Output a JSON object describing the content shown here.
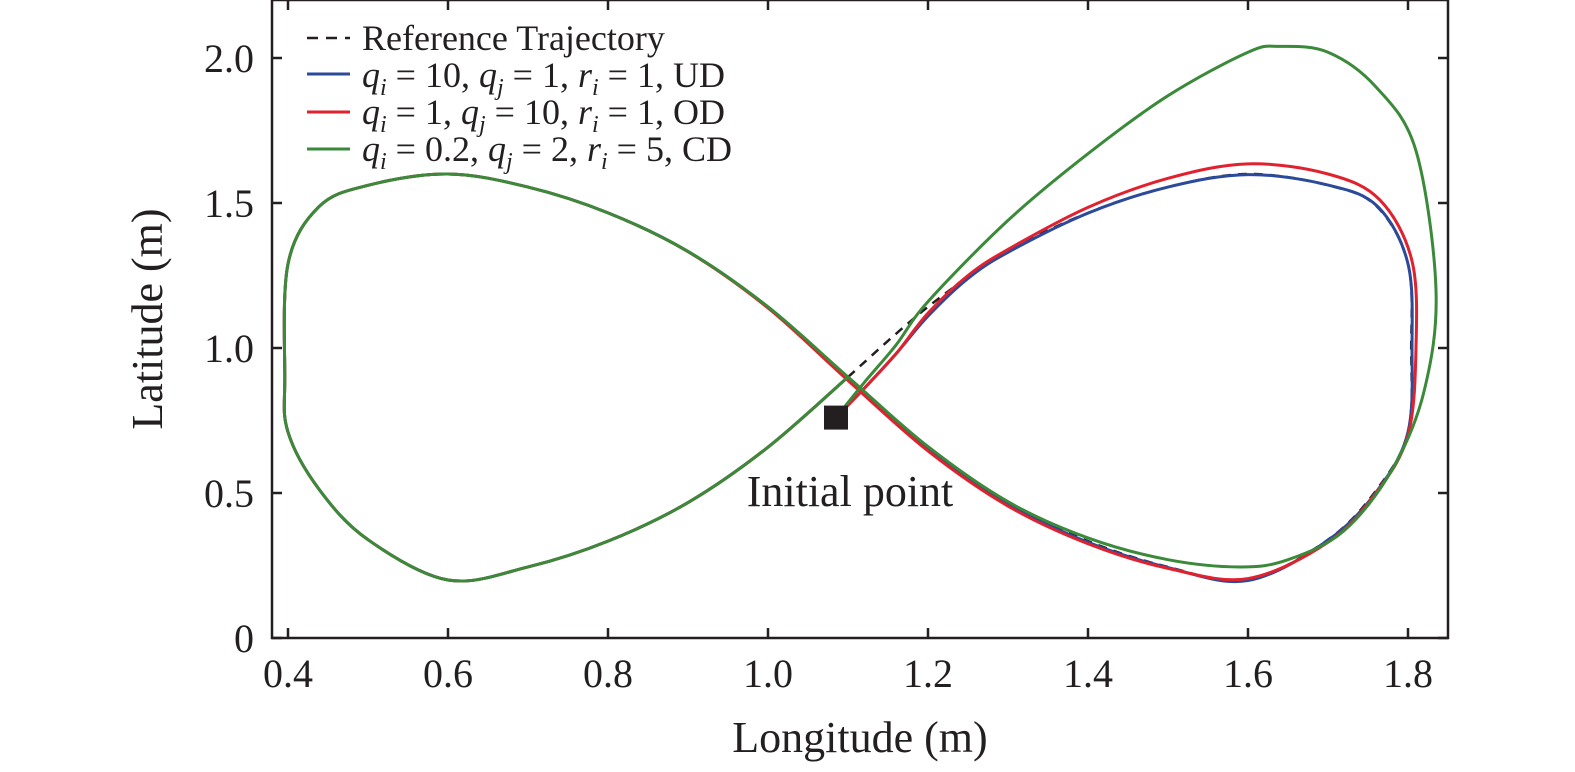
{
  "chart_data": {
    "type": "line",
    "title": "",
    "xlabel": "Longitude (m)",
    "ylabel": "Latitude (m)",
    "xlim": [
      0.38,
      1.85
    ],
    "ylim": [
      0,
      2.2
    ],
    "xticks": [
      0.4,
      0.6,
      0.8,
      1.0,
      1.2,
      1.4,
      1.6,
      1.8
    ],
    "xtick_labels": [
      "0.4",
      "0.6",
      "0.8",
      "1.0",
      "1.2",
      "1.4",
      "1.6",
      "1.8"
    ],
    "yticks": [
      0,
      0.5,
      1.0,
      1.5,
      2.0
    ],
    "ytick_labels": [
      "0",
      "0.5",
      "1.0",
      "1.5",
      "2.0"
    ],
    "grid": false,
    "legend_position": "top-left",
    "colors": {
      "reference": "#231f20",
      "ud": "#2b4a9b",
      "od": "#e0222e",
      "cd": "#3a8a3a",
      "axis": "#231f20"
    },
    "reference_points": [
      [
        1.1,
        0.9
      ],
      [
        1.2,
        1.142
      ],
      [
        1.3,
        1.333
      ],
      [
        1.4,
        1.466
      ],
      [
        1.5,
        1.555
      ],
      [
        1.6,
        1.6
      ],
      [
        1.7,
        1.561
      ],
      [
        1.761,
        1.488
      ],
      [
        1.8,
        1.29
      ],
      [
        1.804,
        1.0
      ],
      [
        1.8,
        0.71
      ],
      [
        1.761,
        0.512
      ],
      [
        1.7,
        0.339
      ],
      [
        1.6,
        0.2
      ],
      [
        1.5,
        0.245
      ],
      [
        1.4,
        0.334
      ],
      [
        1.3,
        0.467
      ],
      [
        1.2,
        0.658
      ],
      [
        1.1,
        0.9
      ],
      [
        1.0,
        1.142
      ],
      [
        0.9,
        1.333
      ],
      [
        0.8,
        1.466
      ],
      [
        0.7,
        1.555
      ],
      [
        0.6,
        1.6
      ],
      [
        0.5,
        1.561
      ],
      [
        0.439,
        1.488
      ],
      [
        0.4,
        1.29
      ],
      [
        0.396,
        0.9
      ],
      [
        0.4,
        0.71
      ],
      [
        0.439,
        0.512
      ],
      [
        0.5,
        0.339
      ],
      [
        0.6,
        0.2
      ],
      [
        0.7,
        0.245
      ],
      [
        0.8,
        0.334
      ],
      [
        0.9,
        0.467
      ],
      [
        1.0,
        0.658
      ],
      [
        1.1,
        0.9
      ]
    ],
    "series": [
      {
        "key": "ud",
        "color": "#2b4a9b",
        "legend_parts": {
          "q_i": "10",
          "q_j": "1",
          "r_i": "1",
          "tag": "UD"
        },
        "points": [
          [
            1.085,
            0.76
          ],
          [
            1.12,
            0.86
          ],
          [
            1.16,
            0.98
          ],
          [
            1.2,
            1.11
          ],
          [
            1.25,
            1.24
          ],
          [
            1.3,
            1.33
          ],
          [
            1.4,
            1.465
          ],
          [
            1.5,
            1.555
          ],
          [
            1.6,
            1.598
          ],
          [
            1.7,
            1.562
          ],
          [
            1.762,
            1.488
          ],
          [
            1.8,
            1.29
          ],
          [
            1.805,
            1.0
          ],
          [
            1.8,
            0.71
          ],
          [
            1.762,
            0.51
          ],
          [
            1.7,
            0.337
          ],
          [
            1.6,
            0.198
          ],
          [
            1.5,
            0.243
          ],
          [
            1.4,
            0.33
          ],
          [
            1.3,
            0.463
          ],
          [
            1.2,
            0.655
          ],
          [
            1.1,
            0.895
          ],
          [
            1.0,
            1.14
          ],
          [
            0.9,
            1.333
          ],
          [
            0.8,
            1.466
          ],
          [
            0.7,
            1.555
          ],
          [
            0.6,
            1.6
          ],
          [
            0.5,
            1.561
          ],
          [
            0.439,
            1.488
          ],
          [
            0.4,
            1.29
          ],
          [
            0.396,
            0.9
          ],
          [
            0.4,
            0.71
          ],
          [
            0.439,
            0.512
          ],
          [
            0.5,
            0.339
          ],
          [
            0.6,
            0.2
          ],
          [
            0.7,
            0.245
          ],
          [
            0.8,
            0.334
          ],
          [
            0.9,
            0.467
          ],
          [
            1.0,
            0.658
          ],
          [
            1.1,
            0.9
          ]
        ]
      },
      {
        "key": "od",
        "color": "#e0222e",
        "legend_parts": {
          "q_i": "1",
          "q_j": "10",
          "r_i": "1",
          "tag": "OD"
        },
        "points": [
          [
            1.085,
            0.76
          ],
          [
            1.12,
            0.86
          ],
          [
            1.16,
            0.98
          ],
          [
            1.2,
            1.12
          ],
          [
            1.25,
            1.25
          ],
          [
            1.3,
            1.34
          ],
          [
            1.4,
            1.485
          ],
          [
            1.5,
            1.585
          ],
          [
            1.6,
            1.635
          ],
          [
            1.7,
            1.6
          ],
          [
            1.765,
            1.51
          ],
          [
            1.805,
            1.3
          ],
          [
            1.81,
            1.0
          ],
          [
            1.8,
            0.7
          ],
          [
            1.76,
            0.5
          ],
          [
            1.7,
            0.33
          ],
          [
            1.6,
            0.205
          ],
          [
            1.5,
            0.24
          ],
          [
            1.4,
            0.325
          ],
          [
            1.3,
            0.455
          ],
          [
            1.2,
            0.645
          ],
          [
            1.1,
            0.888
          ],
          [
            1.0,
            1.138
          ],
          [
            0.9,
            1.332
          ],
          [
            0.8,
            1.466
          ],
          [
            0.7,
            1.555
          ],
          [
            0.6,
            1.6
          ],
          [
            0.5,
            1.561
          ],
          [
            0.439,
            1.488
          ],
          [
            0.4,
            1.29
          ],
          [
            0.396,
            0.9
          ],
          [
            0.4,
            0.71
          ],
          [
            0.439,
            0.512
          ],
          [
            0.5,
            0.339
          ],
          [
            0.6,
            0.2
          ],
          [
            0.7,
            0.245
          ],
          [
            0.8,
            0.334
          ],
          [
            0.9,
            0.467
          ],
          [
            1.0,
            0.658
          ],
          [
            1.1,
            0.9
          ]
        ]
      },
      {
        "key": "cd",
        "color": "#3a8a3a",
        "legend_parts": {
          "q_i": "0.2",
          "q_j": "2",
          "r_i": "5",
          "tag": "CD"
        },
        "points": [
          [
            1.085,
            0.76
          ],
          [
            1.12,
            0.88
          ],
          [
            1.16,
            1.01
          ],
          [
            1.2,
            1.16
          ],
          [
            1.3,
            1.44
          ],
          [
            1.4,
            1.67
          ],
          [
            1.5,
            1.87
          ],
          [
            1.6,
            2.02
          ],
          [
            1.64,
            2.04
          ],
          [
            1.7,
            2.02
          ],
          [
            1.76,
            1.9
          ],
          [
            1.81,
            1.68
          ],
          [
            1.835,
            1.2
          ],
          [
            1.82,
            0.85
          ],
          [
            1.78,
            0.58
          ],
          [
            1.72,
            0.37
          ],
          [
            1.65,
            0.27
          ],
          [
            1.59,
            0.245
          ],
          [
            1.5,
            0.27
          ],
          [
            1.4,
            0.345
          ],
          [
            1.3,
            0.47
          ],
          [
            1.2,
            0.66
          ],
          [
            1.1,
            0.9
          ],
          [
            1.0,
            1.142
          ],
          [
            0.9,
            1.333
          ],
          [
            0.8,
            1.466
          ],
          [
            0.7,
            1.555
          ],
          [
            0.6,
            1.6
          ],
          [
            0.5,
            1.561
          ],
          [
            0.439,
            1.488
          ],
          [
            0.4,
            1.29
          ],
          [
            0.396,
            0.9
          ],
          [
            0.4,
            0.71
          ],
          [
            0.439,
            0.512
          ],
          [
            0.5,
            0.339
          ],
          [
            0.6,
            0.2
          ],
          [
            0.7,
            0.245
          ],
          [
            0.8,
            0.334
          ],
          [
            0.9,
            0.467
          ],
          [
            1.0,
            0.658
          ],
          [
            1.1,
            0.9
          ]
        ]
      }
    ],
    "legend": {
      "reference_label": "Reference Trajectory",
      "q_i_symbol": "q",
      "q_i_sub": "i",
      "q_j_symbol": "q",
      "q_j_sub": "j",
      "r_i_symbol": "r",
      "r_i_sub": "i",
      "equals": " = ",
      "comma": ", "
    },
    "annotations": [
      {
        "text": "Initial point",
        "x": 1.085,
        "y": 0.76
      }
    ],
    "initial_point": {
      "x": 1.085,
      "y": 0.76
    }
  }
}
